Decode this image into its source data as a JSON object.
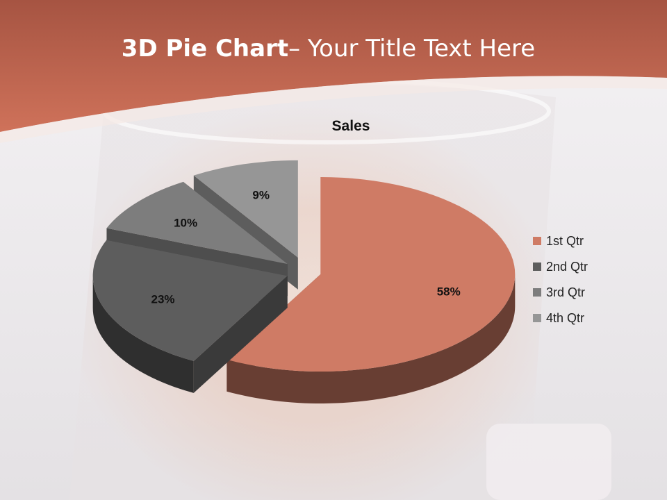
{
  "slide": {
    "title_bold": "3D Pie Chart",
    "title_rest": "– Your Title Text Here",
    "accent_color": "#c25c45"
  },
  "chart_data": {
    "type": "pie",
    "title": "Sales",
    "categories": [
      "1st Qtr",
      "2nd Qtr",
      "3rd Qtr",
      "4th Qtr"
    ],
    "values": [
      58,
      23,
      10,
      9
    ],
    "data_labels": [
      "58%",
      "23%",
      "10%",
      "9%"
    ],
    "colors": [
      "#cf7b65",
      "#5d5d5d",
      "#7d7d7d",
      "#969696"
    ],
    "exploded": true,
    "three_d": true,
    "legend_position": "right"
  }
}
